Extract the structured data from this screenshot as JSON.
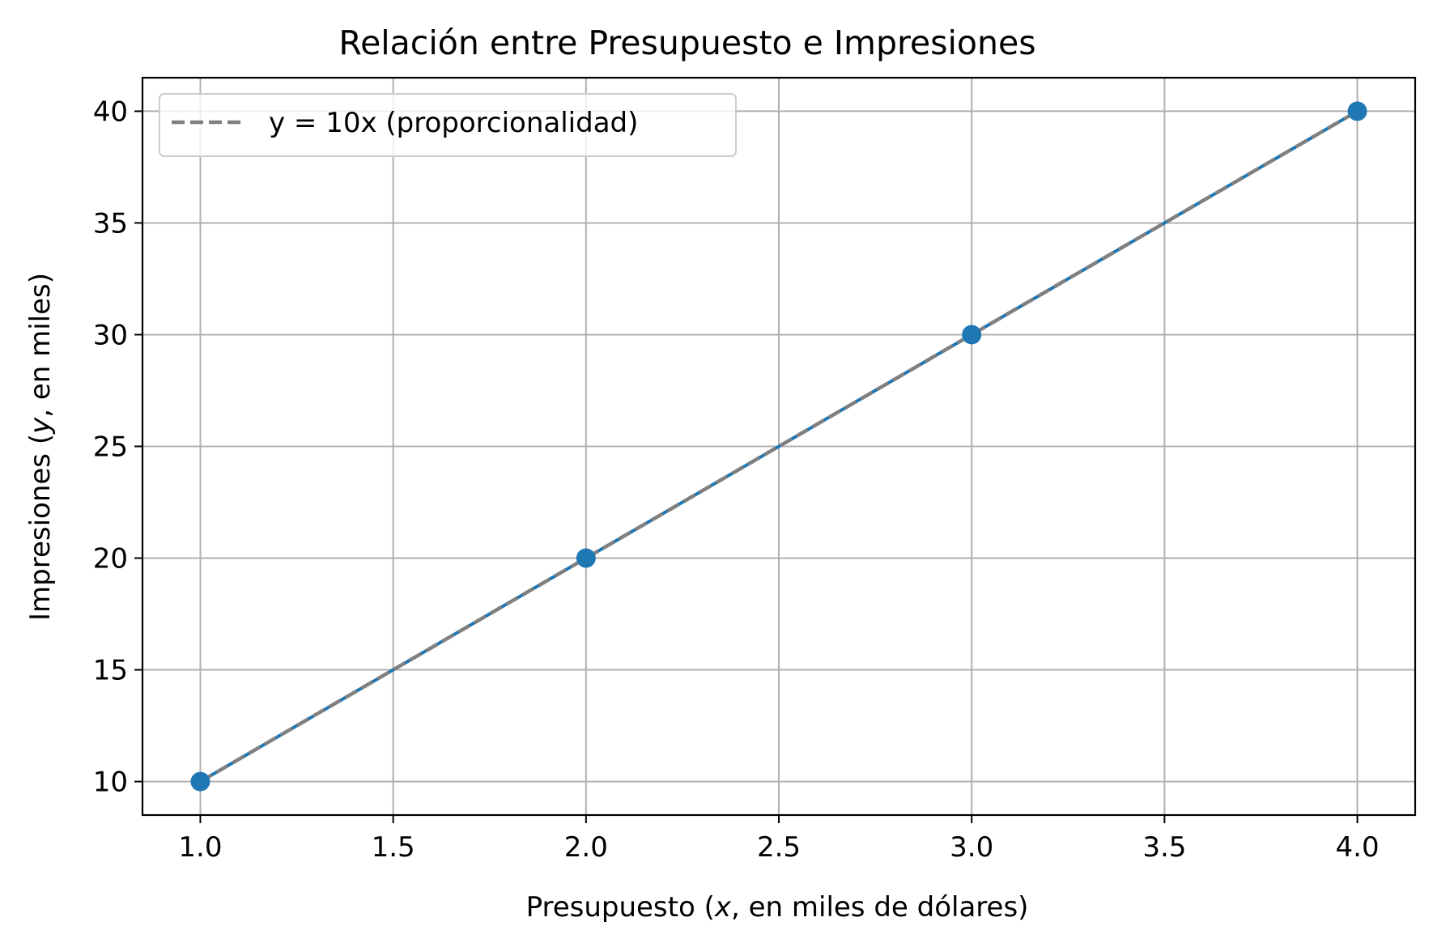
{
  "chart_data": {
    "type": "line",
    "title": "Relación entre Presupuesto e Impresiones",
    "xlabel_parts": [
      "Presupuesto (",
      "x",
      ", en miles de dólares)"
    ],
    "ylabel_parts": [
      "Impresiones (",
      "y",
      ", en miles)"
    ],
    "xlim": [
      0.85,
      4.15
    ],
    "ylim": [
      8.5,
      41.5
    ],
    "xticks": [
      1.0,
      1.5,
      2.0,
      2.5,
      3.0,
      3.5,
      4.0
    ],
    "xtick_labels": [
      "1.0",
      "1.5",
      "2.0",
      "2.5",
      "3.0",
      "3.5",
      "4.0"
    ],
    "yticks": [
      10,
      15,
      20,
      25,
      30,
      35,
      40
    ],
    "ytick_labels": [
      "10",
      "15",
      "20",
      "25",
      "30",
      "35",
      "40"
    ],
    "grid": true,
    "legend_position": "top-left",
    "series": [
      {
        "style": "solid-markers",
        "color": "#1f77b4",
        "x": [
          1,
          2,
          3,
          4
        ],
        "y": [
          10,
          20,
          30,
          40
        ]
      },
      {
        "name": "y = 10x (proporcionalidad)",
        "style": "dashed",
        "color": "#808080",
        "x": [
          1,
          2,
          3,
          4
        ],
        "y": [
          10,
          20,
          30,
          40
        ]
      }
    ]
  }
}
